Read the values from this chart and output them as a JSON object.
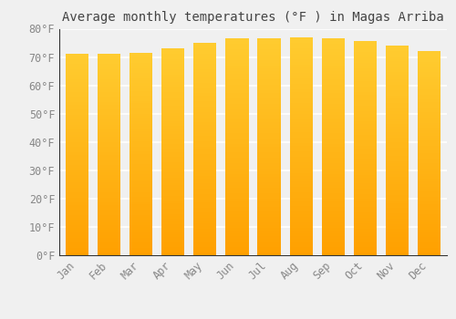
{
  "title": "Average monthly temperatures (°F ) in Magas Arriba",
  "months": [
    "Jan",
    "Feb",
    "Mar",
    "Apr",
    "May",
    "Jun",
    "Jul",
    "Aug",
    "Sep",
    "Oct",
    "Nov",
    "Dec"
  ],
  "values": [
    71.0,
    71.0,
    71.5,
    73.0,
    75.0,
    76.5,
    76.5,
    77.0,
    76.5,
    75.5,
    74.0,
    72.0
  ],
  "bar_color_light": "#FFC830",
  "bar_color_dark": "#FFA000",
  "ylim": [
    0,
    80
  ],
  "yticks": [
    0,
    10,
    20,
    30,
    40,
    50,
    60,
    70,
    80
  ],
  "ytick_labels": [
    "0°F",
    "10°F",
    "20°F",
    "30°F",
    "40°F",
    "50°F",
    "60°F",
    "70°F",
    "80°F"
  ],
  "background_color": "#F0F0F0",
  "grid_color": "#FFFFFF",
  "title_fontsize": 10,
  "tick_fontsize": 8.5,
  "font_family": "monospace",
  "title_color": "#444444",
  "tick_color": "#888888",
  "spine_color": "#333333"
}
